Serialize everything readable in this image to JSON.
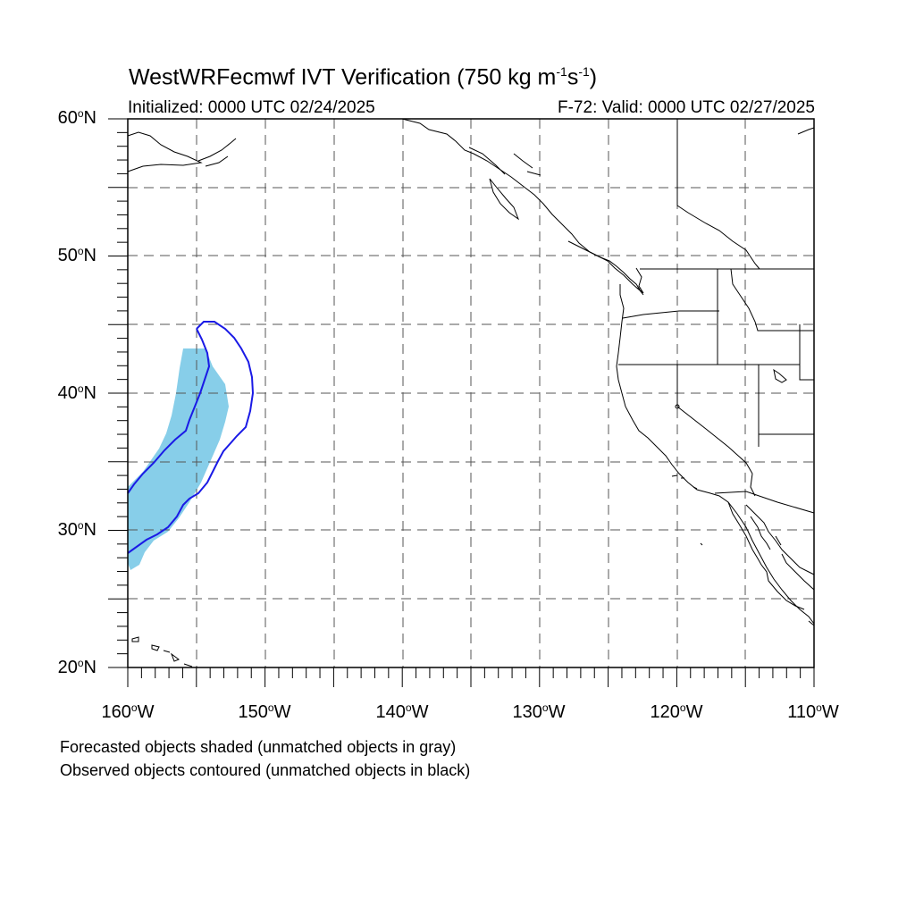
{
  "title_prefix": "WestWRFecmwf IVT Verification (750 kg m",
  "title_sup1": "-1",
  "title_mid": "s",
  "title_sup2": "-1",
  "title_suffix": ")",
  "initialized": "Initialized: 0000 UTC 02/24/2025",
  "valid": "F-72: Valid: 0000 UTC 02/27/2025",
  "lat_labels": [
    {
      "num": "60",
      "hemi": "N"
    },
    {
      "num": "50",
      "hemi": "N"
    },
    {
      "num": "40",
      "hemi": "N"
    },
    {
      "num": "30",
      "hemi": "N"
    },
    {
      "num": "20",
      "hemi": "N"
    }
  ],
  "lon_labels": [
    {
      "num": "160",
      "hemi": "W"
    },
    {
      "num": "150",
      "hemi": "W"
    },
    {
      "num": "140",
      "hemi": "W"
    },
    {
      "num": "130",
      "hemi": "W"
    },
    {
      "num": "120",
      "hemi": "W"
    },
    {
      "num": "110",
      "hemi": "W"
    }
  ],
  "legend": {
    "line1": "Forecasted objects shaded (unmatched objects in gray)",
    "line2": "Observed objects contoured (unmatched objects in black)"
  },
  "colors": {
    "forecast_fill": "#87cee9",
    "observed_contour": "#1a1ae6",
    "grid": "#555555",
    "coast": "#000000"
  },
  "extent": {
    "lon": [
      -160,
      -110
    ],
    "lat": [
      20,
      60
    ]
  }
}
